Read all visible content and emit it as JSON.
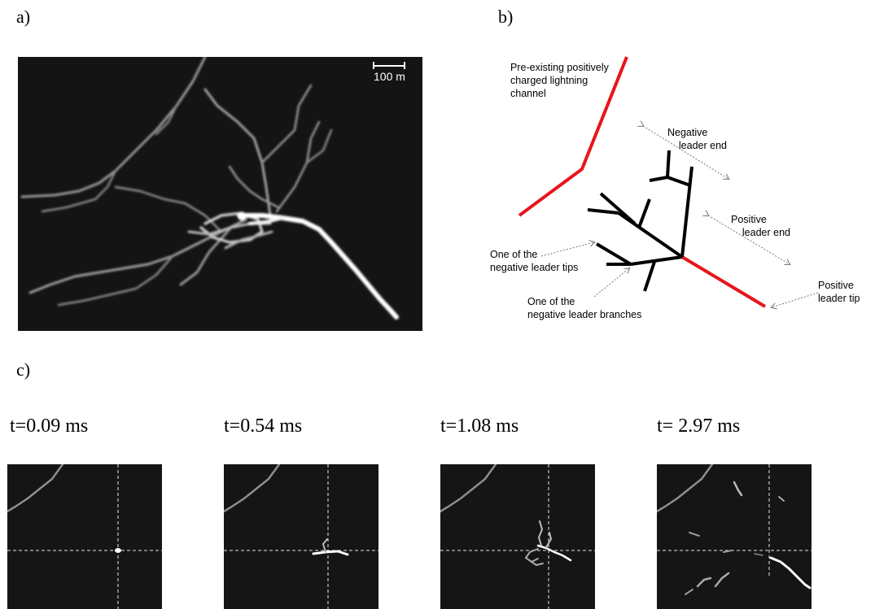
{
  "panels": {
    "a": {
      "label": "a)",
      "scale_bar": "100 m"
    },
    "b": {
      "label": "b)",
      "annotations": {
        "preexisting": "Pre-existing positively\ncharged lightning\nchannel",
        "negative_end": "Negative\n    leader end",
        "positive_end": "Positive\n    leader end",
        "negative_tips": "One of the\nnegative leader tips",
        "negative_branches": "One of the\nnegative leader branches",
        "positive_tip": "Positive\nleader tip"
      },
      "colors": {
        "positive_channel": "#e8141c",
        "negative_leader": "#000000",
        "arrows": "#777777"
      }
    },
    "c": {
      "label": "c)",
      "frames": [
        {
          "time": "t=0.09 ms"
        },
        {
          "time": "t=0.54 ms"
        },
        {
          "time": "t=1.08 ms"
        },
        {
          "time": "t= 2.97 ms"
        }
      ]
    }
  }
}
